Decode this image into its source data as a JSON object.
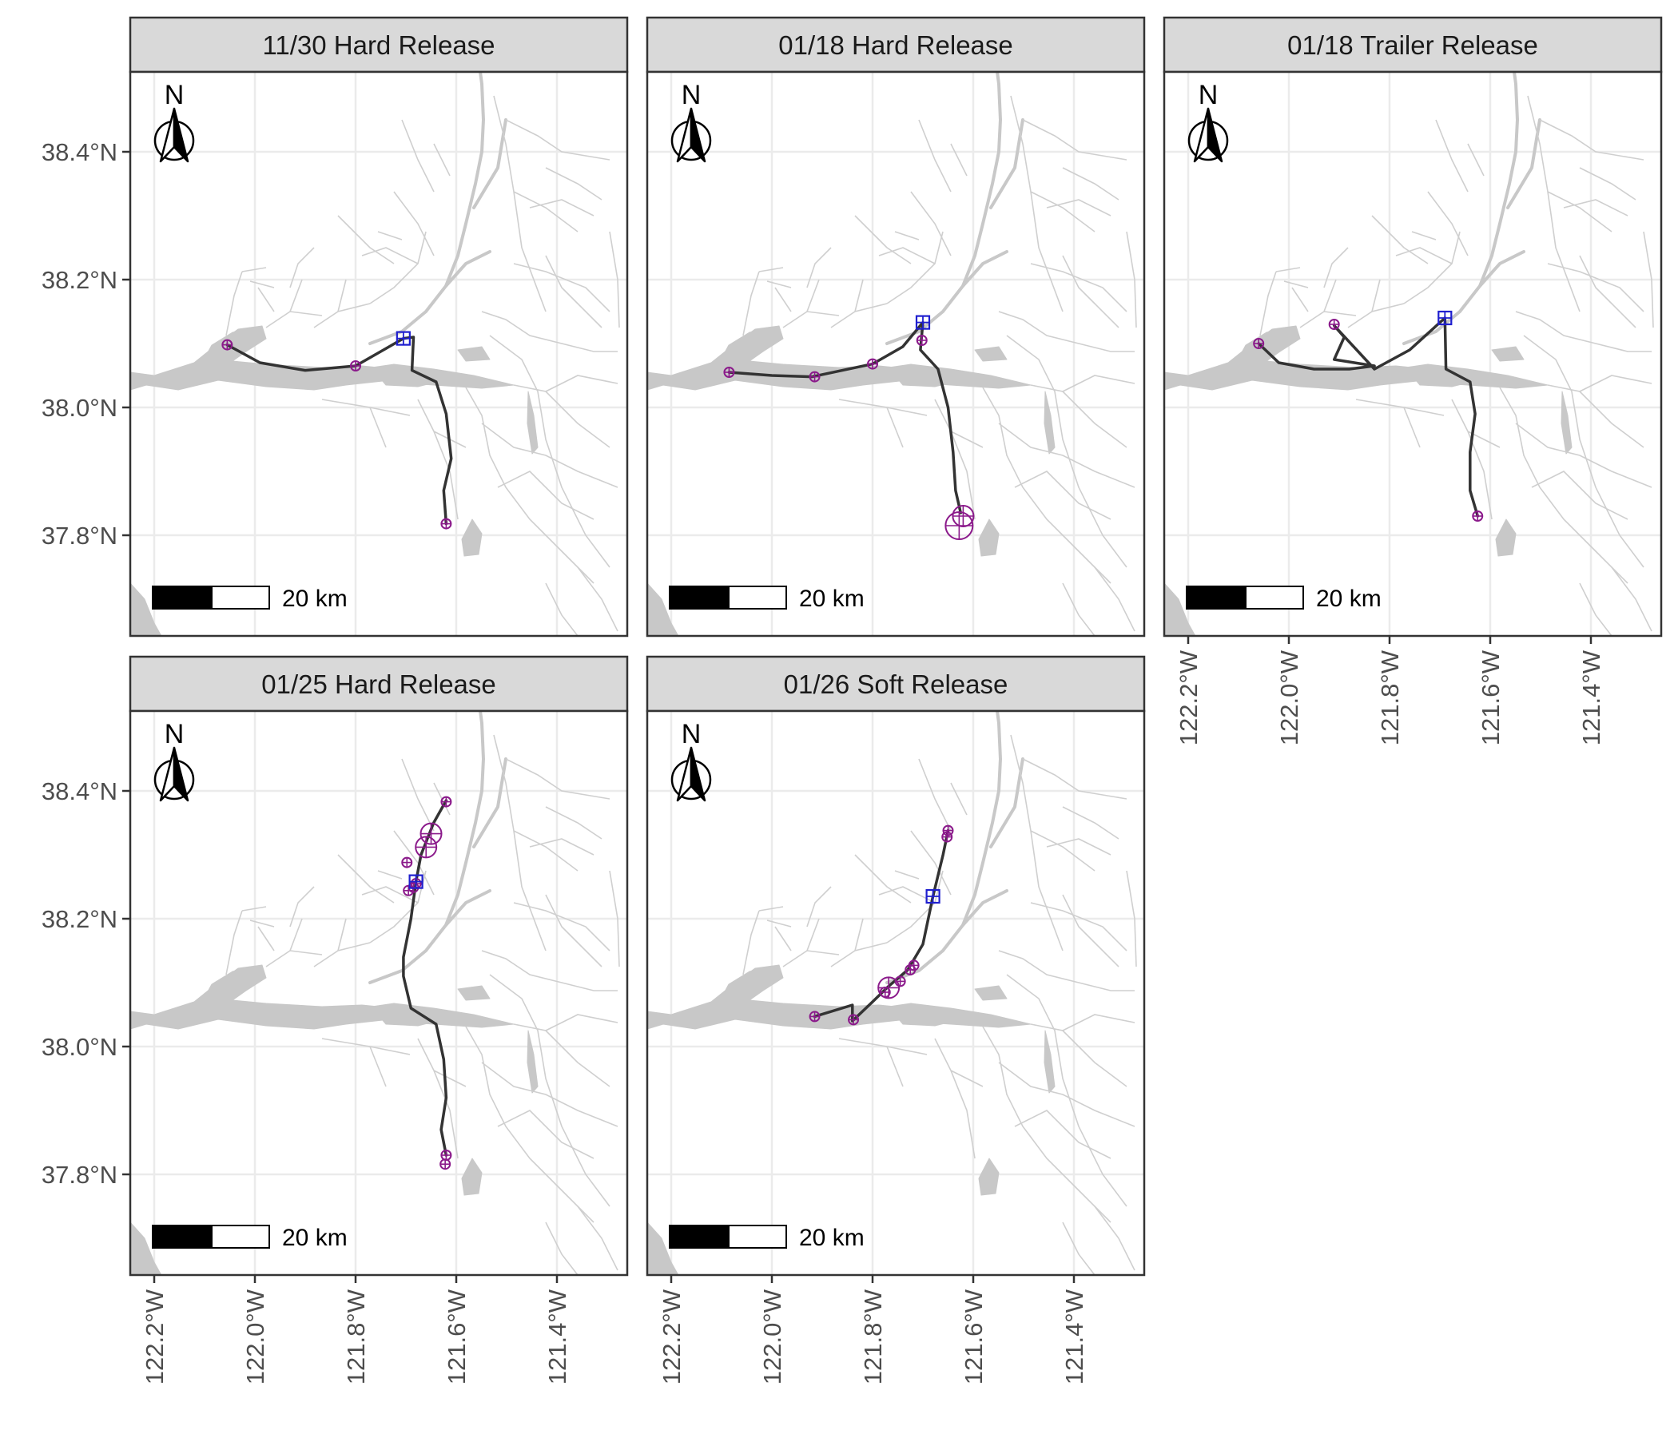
{
  "figure": {
    "x_tick_labels": [
      "122.2°W",
      "122.0°W",
      "121.8°W",
      "121.6°W",
      "121.4°W"
    ],
    "y_tick_labels": [
      "38.4°N",
      "38.2°N",
      "38.0°N",
      "37.8°N"
    ],
    "north_label": "N",
    "scale_label": "20 km"
  },
  "colors": {
    "track": "#333333",
    "detection": "#8b1a8b",
    "release_site": "#1f1fcf",
    "water": "#c8c8c8",
    "grid": "#ebebeb"
  },
  "panels": [
    {
      "title": "11/30 Hard Release",
      "release": {
        "lon": -121.705,
        "lat": 38.108
      },
      "track": [
        [
          -122.055,
          38.098
        ],
        [
          -121.99,
          38.07
        ],
        [
          -121.9,
          38.058
        ],
        [
          -121.8,
          38.065
        ],
        [
          -121.74,
          38.092
        ],
        [
          -121.705,
          38.108
        ],
        [
          -121.685,
          38.11
        ],
        [
          -121.688,
          38.058
        ],
        [
          -121.64,
          38.04
        ],
        [
          -121.62,
          37.99
        ],
        [
          -121.61,
          37.92
        ],
        [
          -121.625,
          37.87
        ],
        [
          -121.62,
          37.818
        ]
      ],
      "detections": [
        {
          "lon": -122.055,
          "lat": 38.098,
          "s": 1
        },
        {
          "lon": -121.8,
          "lat": 38.065,
          "s": 1
        },
        {
          "lon": -121.62,
          "lat": 37.818,
          "s": 1
        }
      ]
    },
    {
      "title": "01/18 Hard Release",
      "release": {
        "lon": -121.7,
        "lat": 38.133
      },
      "track": [
        [
          -122.085,
          38.055
        ],
        [
          -122.0,
          38.05
        ],
        [
          -121.92,
          38.048
        ],
        [
          -121.8,
          38.068
        ],
        [
          -121.74,
          38.095
        ],
        [
          -121.7,
          38.133
        ],
        [
          -121.705,
          38.09
        ],
        [
          -121.67,
          38.06
        ],
        [
          -121.65,
          38.0
        ],
        [
          -121.64,
          37.93
        ],
        [
          -121.635,
          37.87
        ],
        [
          -121.625,
          37.835
        ]
      ],
      "detections": [
        {
          "lon": -122.085,
          "lat": 38.055,
          "s": 1
        },
        {
          "lon": -121.915,
          "lat": 38.048,
          "s": 1
        },
        {
          "lon": -121.8,
          "lat": 38.068,
          "s": 1
        },
        {
          "lon": -121.702,
          "lat": 38.105,
          "s": 1
        },
        {
          "lon": -121.62,
          "lat": 37.83,
          "s": 2
        },
        {
          "lon": -121.628,
          "lat": 37.815,
          "s": 3
        }
      ]
    },
    {
      "title": "01/18 Trailer Release",
      "release": {
        "lon": -121.69,
        "lat": 38.14
      },
      "track": [
        [
          -122.06,
          38.1
        ],
        [
          -122.02,
          38.07
        ],
        [
          -121.95,
          38.06
        ],
        [
          -121.88,
          38.06
        ],
        [
          -121.83,
          38.065
        ],
        [
          -121.91,
          38.075
        ],
        [
          -121.89,
          38.11
        ],
        [
          -121.91,
          38.128
        ],
        [
          -121.83,
          38.06
        ],
        [
          -121.76,
          38.09
        ],
        [
          -121.69,
          38.14
        ],
        [
          -121.688,
          38.06
        ],
        [
          -121.64,
          38.04
        ],
        [
          -121.63,
          37.99
        ],
        [
          -121.64,
          37.93
        ],
        [
          -121.64,
          37.87
        ],
        [
          -121.625,
          37.83
        ]
      ],
      "detections": [
        {
          "lon": -122.06,
          "lat": 38.1,
          "s": 1
        },
        {
          "lon": -121.91,
          "lat": 38.13,
          "s": 1
        },
        {
          "lon": -121.625,
          "lat": 37.83,
          "s": 1
        }
      ]
    },
    {
      "title": "01/25 Hard Release",
      "release": {
        "lon": -121.68,
        "lat": 38.258
      },
      "track": [
        [
          -121.62,
          38.385
        ],
        [
          -121.645,
          38.35
        ],
        [
          -121.67,
          38.3
        ],
        [
          -121.68,
          38.258
        ],
        [
          -121.69,
          38.2
        ],
        [
          -121.705,
          38.14
        ],
        [
          -121.705,
          38.11
        ],
        [
          -121.69,
          38.06
        ],
        [
          -121.64,
          38.035
        ],
        [
          -121.625,
          37.98
        ],
        [
          -121.62,
          37.92
        ],
        [
          -121.63,
          37.87
        ],
        [
          -121.62,
          37.83
        ]
      ],
      "detections": [
        {
          "lon": -121.62,
          "lat": 38.383,
          "s": 1
        },
        {
          "lon": -121.65,
          "lat": 38.333,
          "s": 2
        },
        {
          "lon": -121.66,
          "lat": 38.312,
          "s": 2
        },
        {
          "lon": -121.698,
          "lat": 38.288,
          "s": 1
        },
        {
          "lon": -121.68,
          "lat": 38.255,
          "s": 1
        },
        {
          "lon": -121.685,
          "lat": 38.249,
          "s": 1
        },
        {
          "lon": -121.695,
          "lat": 38.244,
          "s": 1
        },
        {
          "lon": -121.62,
          "lat": 37.83,
          "s": 1
        },
        {
          "lon": -121.622,
          "lat": 37.816,
          "s": 1
        }
      ]
    },
    {
      "title": "01/26 Soft Release",
      "release": {
        "lon": -121.68,
        "lat": 38.235
      },
      "track": [
        [
          -121.915,
          38.047
        ],
        [
          -121.84,
          38.065
        ],
        [
          -121.84,
          38.04
        ],
        [
          -121.8,
          38.07
        ],
        [
          -121.77,
          38.093
        ],
        [
          -121.73,
          38.12
        ],
        [
          -121.7,
          38.16
        ],
        [
          -121.68,
          38.235
        ],
        [
          -121.66,
          38.3
        ],
        [
          -121.65,
          38.338
        ]
      ],
      "detections": [
        {
          "lon": -121.915,
          "lat": 38.047,
          "s": 1
        },
        {
          "lon": -121.838,
          "lat": 38.042,
          "s": 1
        },
        {
          "lon": -121.775,
          "lat": 38.085,
          "s": 1
        },
        {
          "lon": -121.768,
          "lat": 38.092,
          "s": 2
        },
        {
          "lon": -121.745,
          "lat": 38.102,
          "s": 1
        },
        {
          "lon": -121.725,
          "lat": 38.12,
          "s": 1
        },
        {
          "lon": -121.718,
          "lat": 38.127,
          "s": 1
        },
        {
          "lon": -121.65,
          "lat": 38.338,
          "s": 1
        },
        {
          "lon": -121.652,
          "lat": 38.328,
          "s": 1
        }
      ]
    }
  ]
}
